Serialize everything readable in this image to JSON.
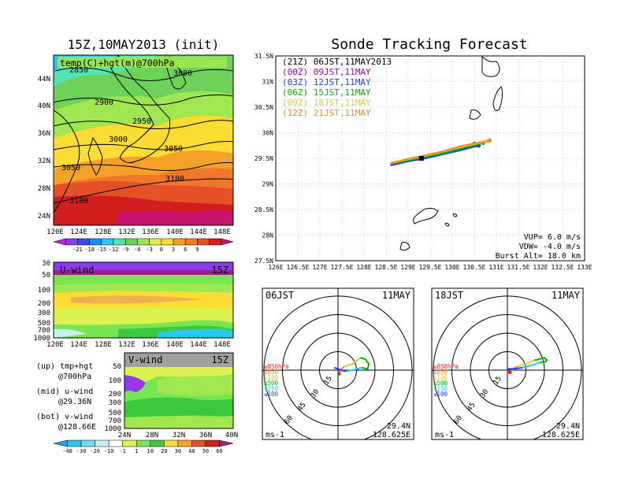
{
  "header": {
    "map_title": "15Z,10MAY2013 (init)",
    "main_title": "Sonde Tracking Forecast"
  },
  "left_map": {
    "label": "temp(C)+hgt(m)@700hPa",
    "contours": [
      "2850",
      "2900",
      "2950",
      "3000",
      "3000",
      "3050",
      "3050",
      "3100",
      "3100"
    ],
    "lat_ticks": [
      "44N",
      "40N",
      "36N",
      "32N",
      "28N",
      "24N"
    ],
    "lon_ticks": [
      "120E",
      "124E",
      "128E",
      "132E",
      "136E",
      "140E",
      "144E",
      "148E"
    ],
    "colorbar_ticks": [
      "-21",
      "-18",
      "-15",
      "-12",
      "-9",
      "-6",
      "-3",
      "0",
      "3",
      "6",
      "9"
    ],
    "colorbar_colors": [
      "#b42dd2",
      "#8c3cf0",
      "#3c46f0",
      "#1e8cf0",
      "#28c8f0",
      "#50e6b4",
      "#6ed25a",
      "#a0e650",
      "#dcf050",
      "#fadc32",
      "#f5a028",
      "#f07828",
      "#e65028",
      "#d21e1e",
      "#c8146e"
    ]
  },
  "u_wind": {
    "label": "U-wind",
    "time": "15Z",
    "y_ticks": [
      "30",
      "50",
      "100",
      "200",
      "300",
      "500",
      "700",
      "1000"
    ],
    "x_ticks": [
      "120E",
      "124E",
      "128E",
      "132E",
      "136E",
      "140E",
      "144E",
      "148E"
    ]
  },
  "v_wind": {
    "label": "V-wind",
    "time": "15Z",
    "y_ticks": [
      "50",
      "100",
      "200",
      "300",
      "500",
      "700",
      "1000"
    ],
    "x_ticks": [
      "24N",
      "28N",
      "32N",
      "36N",
      "40N"
    ]
  },
  "legend_notes": [
    {
      "a": "(up) tmp+hgt",
      "b": "@700hPa"
    },
    {
      "a": "(mid) u-wind",
      "b": "@29.36N"
    },
    {
      "a": "(bot) v-wind",
      "b": "@128.66E"
    }
  ],
  "wind_colorbar": {
    "ticks": [
      "-40",
      "-30",
      "-20",
      "-10",
      "-1",
      "1",
      "10",
      "20",
      "30",
      "40",
      "50",
      "60"
    ],
    "colors": [
      "#28a0f0",
      "#28c8f0",
      "#78dcf0",
      "#c8f0f0",
      "#ffffff",
      "#dcf050",
      "#78e650",
      "#3cc83c",
      "#fadc32",
      "#f5a028",
      "#e65028",
      "#d21e1e",
      "#a01e8c"
    ]
  },
  "tracking": {
    "legend": [
      {
        "text": "(21Z)  06JST,11MAY2013",
        "color": "#000000"
      },
      {
        "text": "(00Z)  09JST,11MAY",
        "color": "#a000c8"
      },
      {
        "text": "(03Z)  12JST,11MAY",
        "color": "#1e3cff"
      },
      {
        "text": "(06Z)  15JST,11MAY",
        "color": "#00b400"
      },
      {
        "text": "(09Z)  18JST,11MAY",
        "color": "#e6c832"
      },
      {
        "text": "(12Z)  21JST,11MAY",
        "color": "#f08c28"
      }
    ],
    "lat_ticks": [
      "31.5N",
      "31N",
      "30.5N",
      "30N",
      "29.5N",
      "29N",
      "28.5N",
      "28N",
      "27.5N"
    ],
    "lon_ticks": [
      "126E",
      "126.5E",
      "127E",
      "127.5E",
      "128E",
      "128.5E",
      "129E",
      "129.5E",
      "130E",
      "130.5E",
      "131E",
      "131.5E",
      "132E",
      "132.5E",
      "133E"
    ],
    "info": [
      "VUP=  6.0  m/s",
      "VDW= -4.0  m/s",
      "Burst Alt= 18.0  km"
    ]
  },
  "hodo_left": {
    "jst": "06JST",
    "date": "11MAY",
    "rings": [
      "15",
      "30",
      "45",
      "60"
    ],
    "levels": [
      {
        "t": "≥850hPa",
        "c": "#e61e1e"
      },
      {
        "t": "≤850",
        "c": "#f08c28"
      },
      {
        "t": "≤700",
        "c": "#e6c832"
      },
      {
        "t": "≤500",
        "c": "#00b400"
      },
      {
        "t": "≤250",
        "c": "#28c8f0"
      },
      {
        "t": "≤100",
        "c": "#1e3cff"
      }
    ],
    "lat": "29.4N",
    "lon": "128.625E",
    "unit": "ms-1"
  },
  "hodo_right": {
    "jst": "18JST",
    "date": "11MAY",
    "rings": [
      "15",
      "30",
      "45",
      "60"
    ],
    "levels": [
      {
        "t": "≥850hPa",
        "c": "#e61e1e"
      },
      {
        "t": "≤850",
        "c": "#f08c28"
      },
      {
        "t": "≤700",
        "c": "#e6c832"
      },
      {
        "t": "≤500",
        "c": "#00b400"
      },
      {
        "t": "≤250",
        "c": "#28c8f0"
      },
      {
        "t": "≤100",
        "c": "#1e3cff"
      }
    ],
    "lat": "29.4N",
    "lon": "128.625E",
    "unit": "ms-1"
  },
  "chart_data": [
    {
      "type": "line",
      "title": "Sonde Tracking Forecast",
      "xlim": [
        126,
        133
      ],
      "ylim": [
        27.5,
        31.5
      ],
      "series": [
        {
          "name": "(21Z) 06JST,11MAY2013",
          "x": [
            128.6,
            129.0,
            129.4,
            129.8,
            130.2,
            130.5
          ],
          "y": [
            29.38,
            29.45,
            29.52,
            29.6,
            29.68,
            29.78
          ]
        },
        {
          "name": "(00Z) 09JST,11MAY",
          "x": [
            128.6,
            129.0,
            129.4,
            129.8,
            130.2,
            130.55
          ],
          "y": [
            29.36,
            29.44,
            29.52,
            29.61,
            29.7,
            29.76
          ]
        },
        {
          "name": "(03Z) 12JST,11MAY",
          "x": [
            128.6,
            129.0,
            129.4,
            129.8,
            130.2,
            130.6
          ],
          "y": [
            29.37,
            29.44,
            29.5,
            29.58,
            29.66,
            29.75
          ]
        },
        {
          "name": "(06Z) 15JST,11MAY",
          "x": [
            128.6,
            129.0,
            129.4,
            129.8,
            130.2,
            130.7
          ],
          "y": [
            29.39,
            29.46,
            29.53,
            29.6,
            29.69,
            29.8
          ]
        },
        {
          "name": "(09Z) 18JST,11MAY",
          "x": [
            128.6,
            129.0,
            129.4,
            129.8,
            130.2,
            130.8
          ],
          "y": [
            29.4,
            29.48,
            29.55,
            29.63,
            29.72,
            29.83
          ]
        },
        {
          "name": "(12Z) 21JST,11MAY",
          "x": [
            128.6,
            129.0,
            129.4,
            129.8,
            130.2,
            130.85
          ],
          "y": [
            29.41,
            29.49,
            29.56,
            29.64,
            29.74,
            29.85
          ]
        }
      ]
    },
    {
      "type": "line",
      "title": "06JST 11MAY",
      "series": [
        {
          "name": "≥850hPa",
          "u": [
            0,
            1
          ],
          "v": [
            0,
            -3
          ]
        },
        {
          "name": "≤850",
          "u": [
            1,
            3,
            5
          ],
          "v": [
            -3,
            1,
            3
          ]
        },
        {
          "name": "≤700",
          "u": [
            5,
            12,
            18
          ],
          "v": [
            3,
            5,
            10
          ]
        },
        {
          "name": "≤500",
          "u": [
            18,
            22,
            25,
            24,
            19
          ],
          "v": [
            10,
            9,
            5,
            1,
            2
          ]
        },
        {
          "name": "≤250",
          "u": [
            19,
            12,
            6
          ],
          "v": [
            2,
            0,
            -1
          ]
        },
        {
          "name": "≤100",
          "u": [
            6,
            0,
            -3
          ],
          "v": [
            -1,
            1,
            2
          ]
        }
      ]
    },
    {
      "type": "line",
      "title": "18JST 11MAY",
      "series": [
        {
          "name": "≥850hPa",
          "u": [
            0,
            2
          ],
          "v": [
            0,
            -2
          ]
        },
        {
          "name": "≤850",
          "u": [
            2,
            6,
            8
          ],
          "v": [
            -2,
            2,
            3
          ]
        },
        {
          "name": "≤700",
          "u": [
            8,
            15,
            22
          ],
          "v": [
            3,
            5,
            8
          ]
        },
        {
          "name": "≤500",
          "u": [
            22,
            30,
            32,
            31,
            26
          ],
          "v": [
            8,
            10,
            8,
            7,
            6
          ]
        },
        {
          "name": "≤250",
          "u": [
            26,
            20,
            12
          ],
          "v": [
            6,
            4,
            2
          ]
        },
        {
          "name": "≤100",
          "u": [
            12,
            5,
            0
          ],
          "v": [
            2,
            1,
            1
          ]
        }
      ]
    }
  ]
}
